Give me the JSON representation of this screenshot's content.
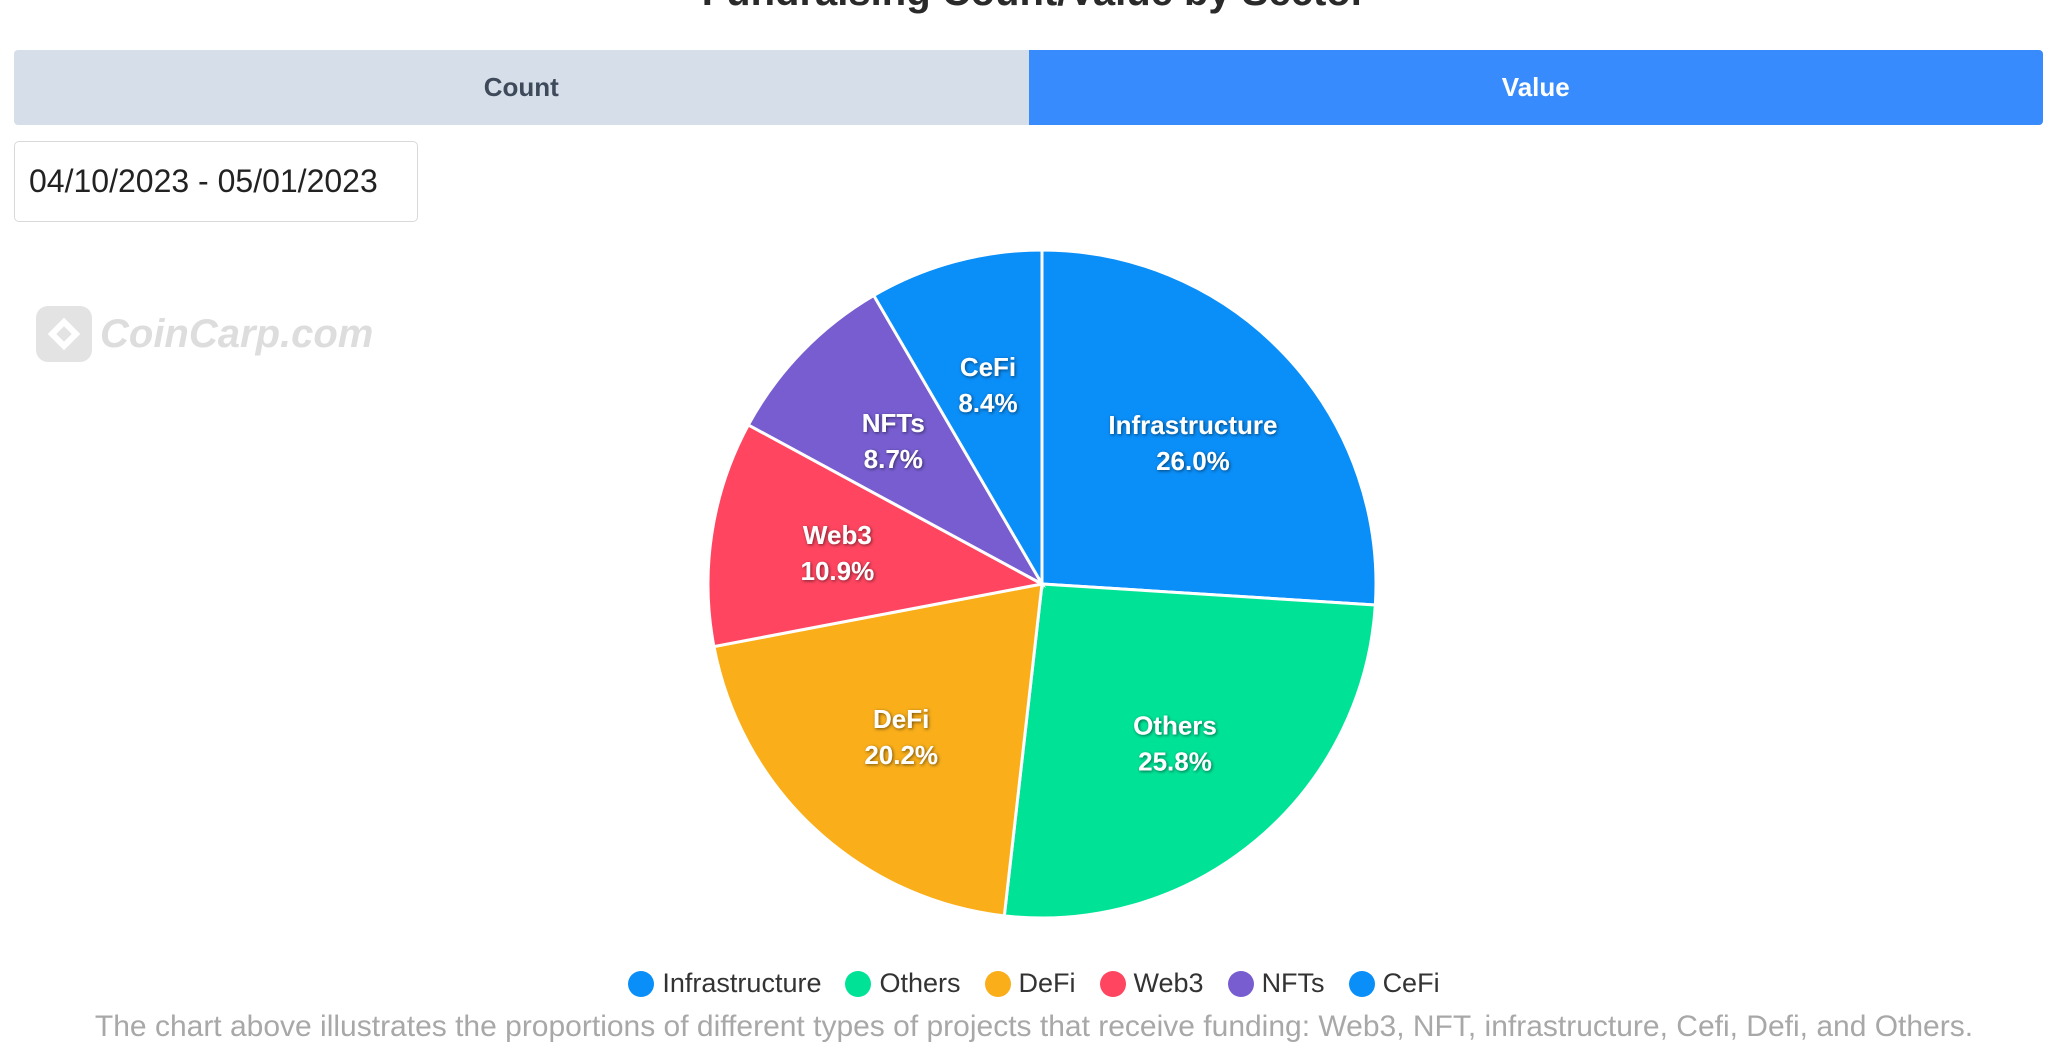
{
  "title": "Fundraising Count/Value by Sector",
  "tabs": [
    {
      "label": "Count",
      "active": false
    },
    {
      "label": "Value",
      "active": true
    }
  ],
  "date_range": "04/10/2023 - 05/01/2023",
  "watermark": "CoinCarp.com",
  "caption": "The chart above illustrates the proportions of different types of projects that receive funding: Web3, NFT, infrastructure, Cefi, Defi, and Others.",
  "colors": {
    "tab_active": "#388bfd",
    "tab_inactive": "#d5dee9"
  },
  "chart_data": {
    "type": "pie",
    "title": "Fundraising Count/Value by Sector",
    "legend_position": "bottom",
    "slices": [
      {
        "label": "Infrastructure",
        "value": 26.0,
        "display": "26.0%",
        "color": "#0a8ef8"
      },
      {
        "label": "Others",
        "value": 25.8,
        "display": "25.8%",
        "color": "#00e396"
      },
      {
        "label": "DeFi",
        "value": 20.2,
        "display": "20.2%",
        "color": "#f9ae1a"
      },
      {
        "label": "Web3",
        "value": 10.9,
        "display": "10.9%",
        "color": "#ff4560"
      },
      {
        "label": "NFTs",
        "value": 8.7,
        "display": "8.7%",
        "color": "#775dd0"
      },
      {
        "label": "CeFi",
        "value": 8.4,
        "display": "8.4%",
        "color": "#0a8ef8"
      }
    ]
  }
}
